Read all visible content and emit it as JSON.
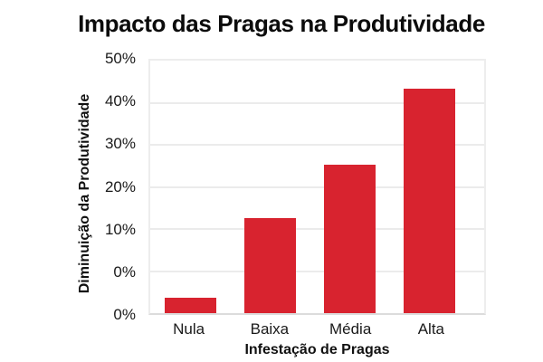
{
  "chart_data": {
    "type": "bar",
    "title": "Impacto das Pragas na Produtividade",
    "xlabel": "Infestação de Pragas",
    "ylabel": "Diminuição da Produtividade",
    "categories": [
      "Nula",
      "Baixa",
      "Média",
      "Alta"
    ],
    "values": [
      4,
      13,
      26,
      44
    ],
    "unit": "%",
    "bar_color": "#d8232f",
    "grid": true,
    "legend": false,
    "y_axis": {
      "tick_labels_top_to_bottom": [
        "50%",
        "40%",
        "30%",
        "20%",
        "10%",
        "0%",
        "0%"
      ],
      "note": "the 0% label appears twice: once on a gridline and once on the bottom axis; bars rise from the bottom axis line",
      "ylim_render": [
        -10,
        50
      ],
      "bar_tops_render": [
        -6.4,
        12.5,
        25.2,
        43.4
      ]
    }
  }
}
